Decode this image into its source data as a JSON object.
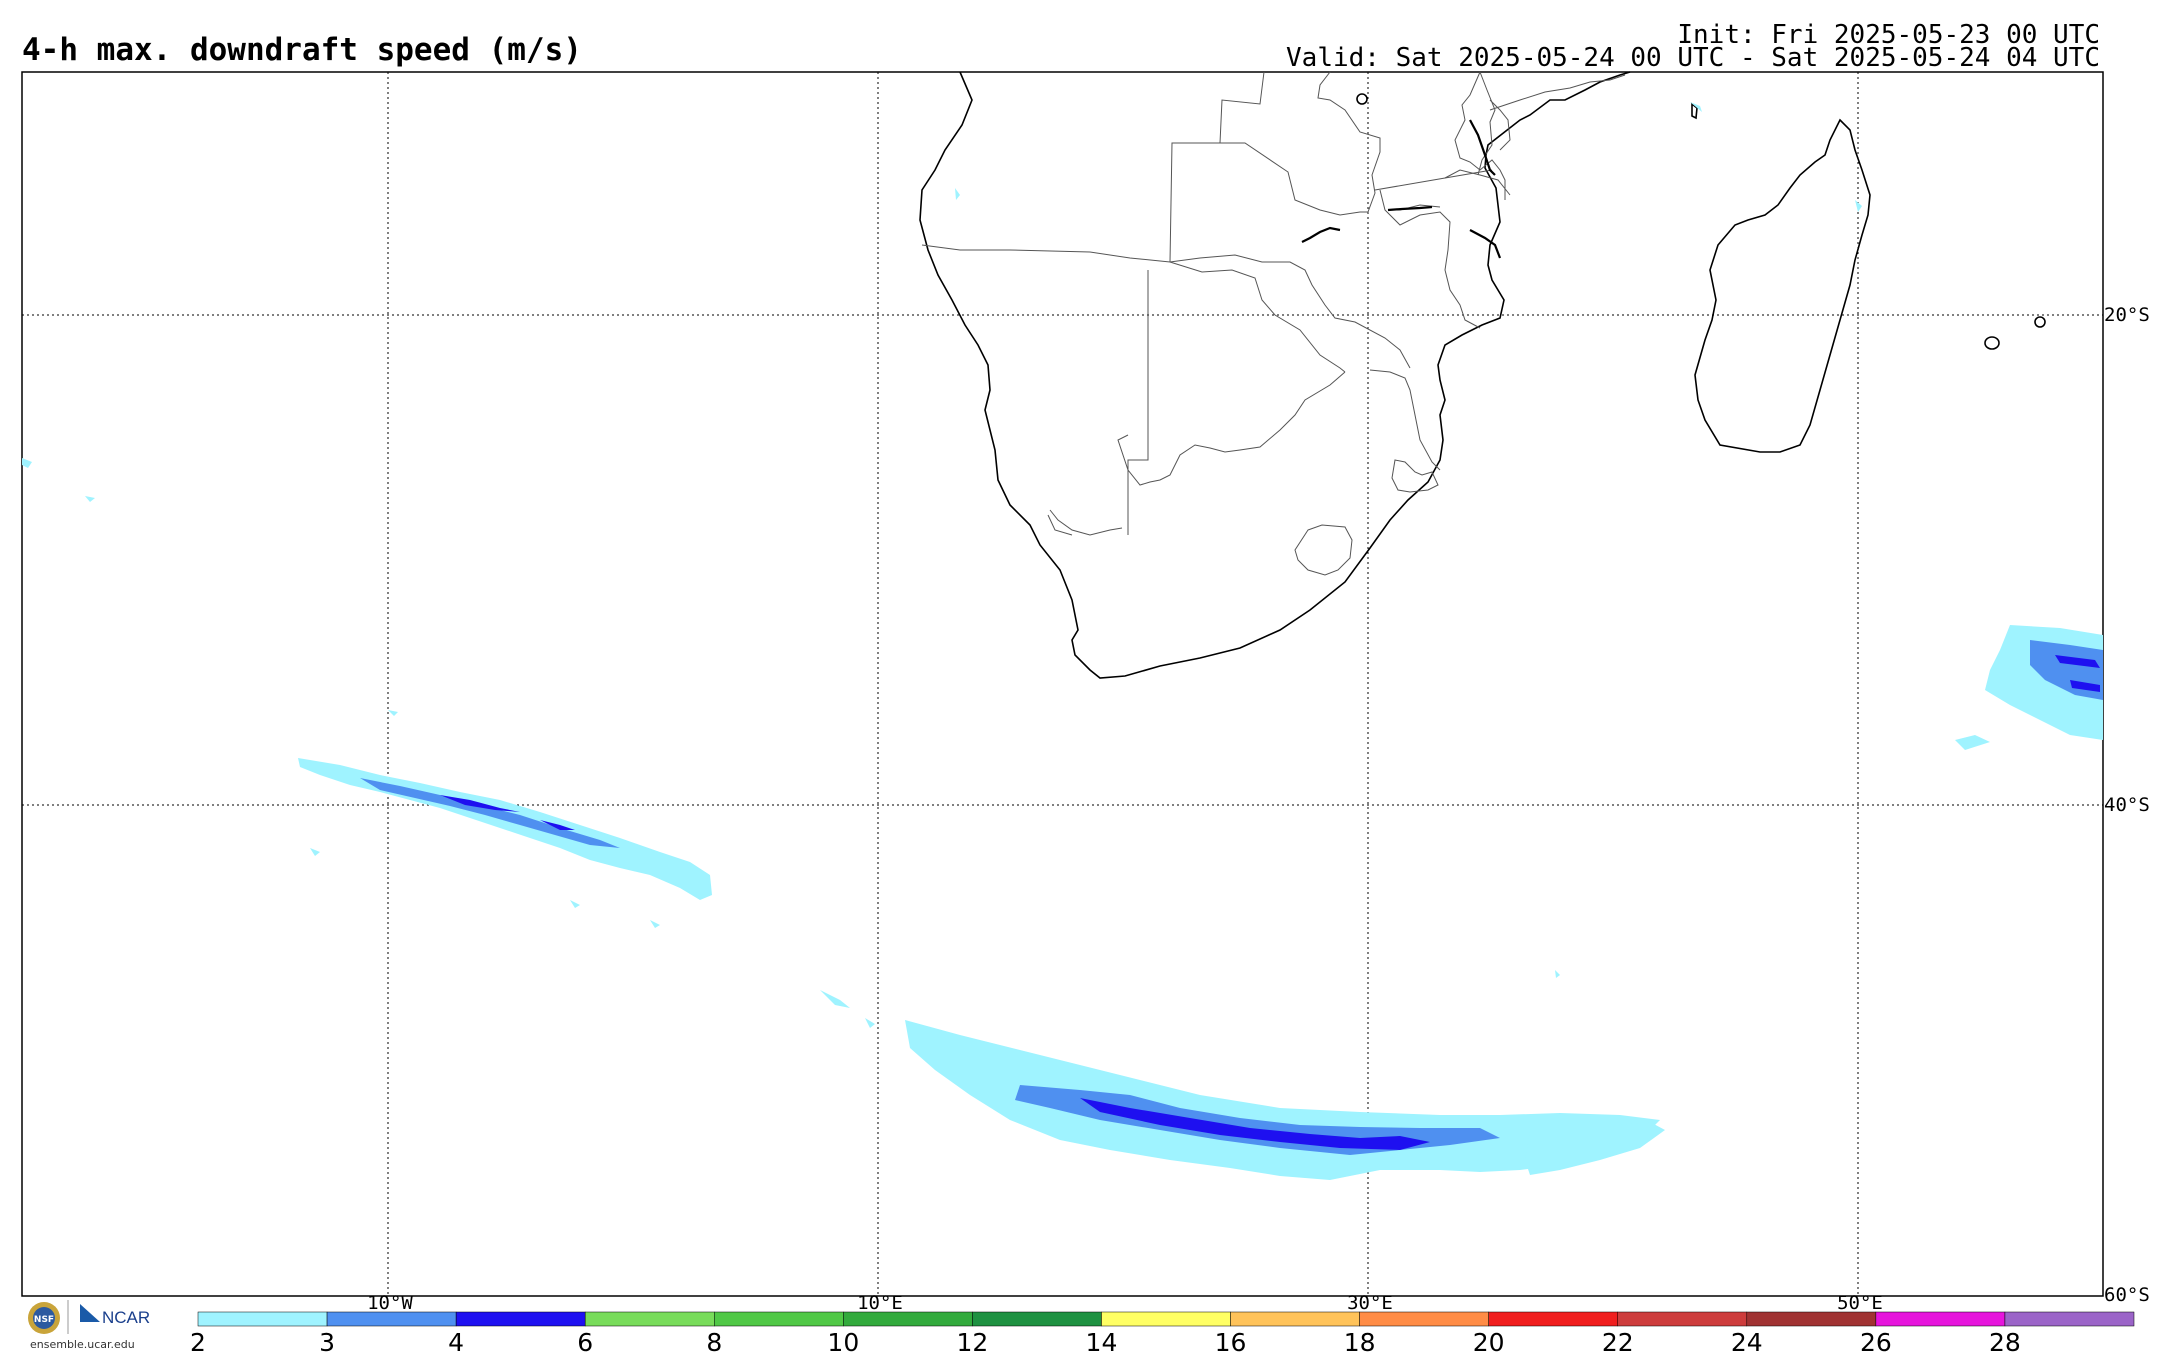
{
  "title": "4-h max. downdraft speed (m/s)",
  "init": "Init: Fri 2025-05-23 00 UTC",
  "valid": "Valid: Sat 2025-05-24 00 UTC - Sat 2025-05-24 04 UTC",
  "lat_labels": [
    "20°S",
    "40°S",
    "60°S"
  ],
  "lon_labels": [
    "10°W",
    "10°E",
    "30°E",
    "50°E"
  ],
  "colorbar": {
    "bounds": [
      "2",
      "3",
      "4",
      "6",
      "8",
      "10",
      "12",
      "14",
      "16",
      "18",
      "20",
      "22",
      "24",
      "26",
      "28"
    ],
    "colors": [
      "#9ff3ff",
      "#4f90f0",
      "#1e10f0",
      "#78dc5a",
      "#50c846",
      "#32aa3c",
      "#1e9141",
      "#ffff64",
      "#ffc35a",
      "#ff8c46",
      "#f01e1e",
      "#cd3c3c",
      "#a03232",
      "#e614dc",
      "#9b64c8"
    ]
  },
  "logo": {
    "nsf_text": "NSF",
    "ncar_text": "NCAR",
    "url": "ensemble.ucar.edu"
  }
}
